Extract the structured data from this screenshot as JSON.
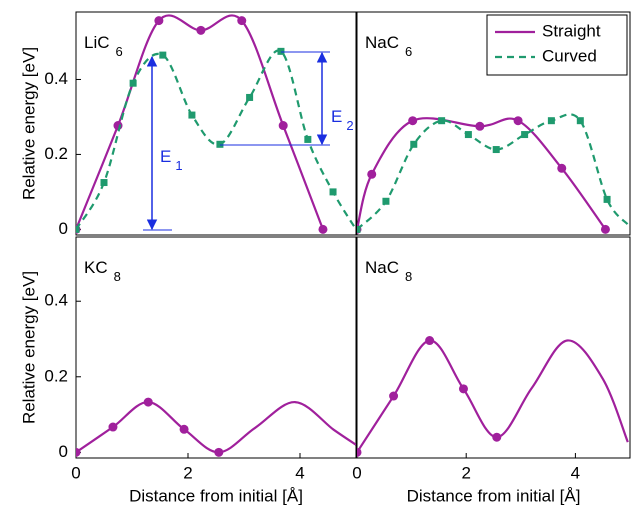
{
  "chart_data": [
    {
      "type": "line",
      "label": "LiC",
      "label_sub": "6",
      "xlim": [
        0,
        5
      ],
      "ylim": [
        -0.015,
        0.58
      ],
      "yticks": [
        0,
        0.2,
        0.4
      ],
      "ylabel": "Relative energy [eV]",
      "legend": "upper right",
      "annotations": [
        {
          "text": "E",
          "sub": "1"
        },
        {
          "text": "E",
          "sub": "2"
        }
      ],
      "series": [
        {
          "name": "Straight",
          "color": "#a0209c",
          "marker": "circle",
          "dashed": false,
          "x": [
            0,
            0.75,
            1.48,
            2.23,
            2.96,
            3.7,
            4.41
          ],
          "values": [
            0,
            0.277,
            0.557,
            0.531,
            0.557,
            0.277,
            0
          ],
          "markers": [
            true,
            true,
            true,
            true,
            true,
            true,
            true
          ]
        },
        {
          "name": "Curved",
          "color": "#1f9a6e",
          "marker": "square",
          "dashed": true,
          "x": [
            0,
            0.5,
            1.02,
            1.55,
            2.07,
            2.57,
            3.1,
            3.66,
            4.14,
            4.59,
            5.0
          ],
          "values": [
            0,
            0.125,
            0.39,
            0.465,
            0.305,
            0.227,
            0.352,
            0.475,
            0.24,
            0.1,
            0
          ],
          "markers": [
            true,
            true,
            true,
            true,
            true,
            true,
            true,
            true,
            true,
            true,
            false
          ]
        }
      ]
    },
    {
      "type": "line",
      "label": "NaC",
      "label_sub": "6",
      "xlim": [
        0,
        5
      ],
      "ylim": [
        -0.015,
        0.58
      ],
      "series": [
        {
          "color": "#a0209c",
          "marker": "circle",
          "dashed": false,
          "x": [
            0,
            0.27,
            1.02,
            2.25,
            2.95,
            3.75,
            4.55
          ],
          "values": [
            0,
            0.147,
            0.29,
            0.275,
            0.29,
            0.163,
            0
          ],
          "markers": [
            true,
            true,
            true,
            true,
            true,
            true,
            true
          ]
        },
        {
          "color": "#1f9a6e",
          "marker": "square",
          "dashed": true,
          "x": [
            0,
            0.53,
            1.04,
            1.55,
            2.04,
            2.55,
            3.07,
            3.56,
            4.09,
            4.58,
            4.96
          ],
          "values": [
            0,
            0.075,
            0.227,
            0.29,
            0.253,
            0.213,
            0.253,
            0.29,
            0.29,
            0.08,
            0.013
          ],
          "markers": [
            true,
            true,
            true,
            true,
            true,
            true,
            true,
            true,
            true,
            true,
            false
          ]
        }
      ]
    },
    {
      "type": "line",
      "label": "KC",
      "label_sub": "8",
      "xlim": [
        0,
        5
      ],
      "ylim": [
        -0.015,
        0.57
      ],
      "yticks": [
        0,
        0.2,
        0.4
      ],
      "xticks": [
        0,
        2,
        4
      ],
      "ylabel": "Relative energy [eV]",
      "xlabel": "Distance from initial [Å]",
      "series": [
        {
          "color": "#a0209c",
          "marker": "circle",
          "dashed": false,
          "x": [
            0,
            0.66,
            1.29,
            1.93,
            2.55,
            3.2,
            3.91,
            4.6,
            5.0
          ],
          "values": [
            0,
            0.067,
            0.133,
            0.061,
            0,
            0.065,
            0.133,
            0.06,
            0.02
          ],
          "markers": [
            true,
            true,
            true,
            true,
            true,
            false,
            false,
            false,
            false
          ]
        }
      ]
    },
    {
      "type": "line",
      "label": "NaC",
      "label_sub": "8",
      "xlim": [
        0,
        5
      ],
      "ylim": [
        -0.015,
        0.57
      ],
      "xticks": [
        0,
        2,
        4
      ],
      "xlabel": "Distance from initial [Å]",
      "series": [
        {
          "color": "#a0209c",
          "marker": "circle",
          "dashed": false,
          "x": [
            0,
            0.67,
            1.33,
            1.95,
            2.56,
            3.2,
            3.85,
            4.5,
            4.96
          ],
          "values": [
            0,
            0.149,
            0.296,
            0.168,
            0.04,
            0.17,
            0.296,
            0.195,
            0.027
          ],
          "markers": [
            true,
            true,
            true,
            true,
            true,
            false,
            false,
            false,
            false
          ]
        }
      ]
    }
  ]
}
